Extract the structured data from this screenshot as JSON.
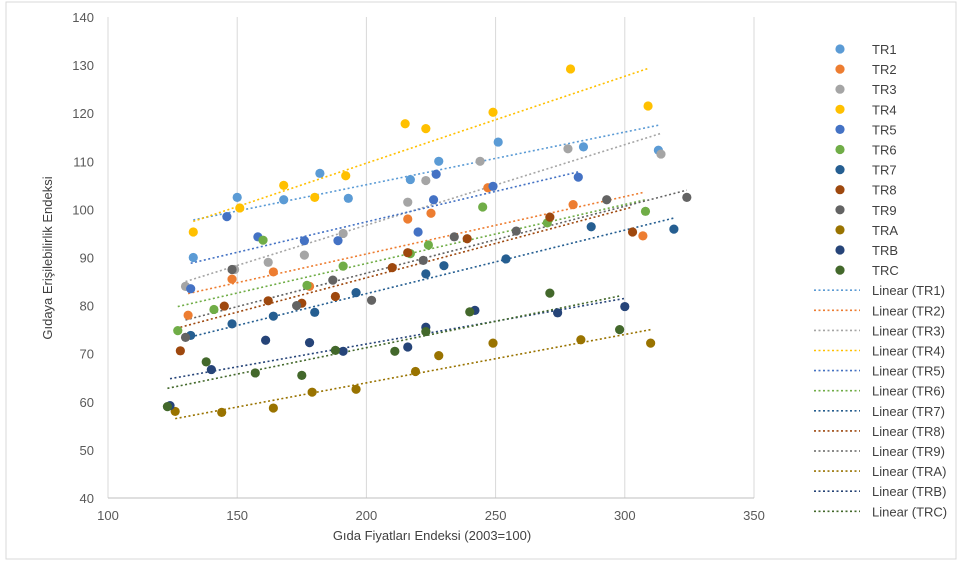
{
  "chart_data": {
    "type": "scatter",
    "xlabel": "Gıda Fiyatları Endeksi (2003=100)",
    "ylabel": "Gıdaya Erişilebilirlik Endeksi",
    "xlim": [
      100,
      350
    ],
    "ylim": [
      40,
      140
    ],
    "x_ticks": [
      100,
      150,
      200,
      250,
      300,
      350
    ],
    "y_ticks": [
      40,
      50,
      60,
      70,
      80,
      90,
      100,
      110,
      120,
      130,
      140
    ],
    "grid": "vertical",
    "legend_position": "right",
    "series": [
      {
        "name": "TR1",
        "color": "#5B9BD5",
        "points": [
          [
            133,
            90
          ],
          [
            150,
            102.5
          ],
          [
            168,
            102
          ],
          [
            182,
            107.5
          ],
          [
            193,
            102.3
          ],
          [
            217,
            106.2
          ],
          [
            228,
            110
          ],
          [
            251,
            114
          ],
          [
            284,
            113
          ],
          [
            313,
            112.3
          ]
        ]
      },
      {
        "name": "TR2",
        "color": "#ED7D31",
        "points": [
          [
            131,
            78
          ],
          [
            148,
            85.5
          ],
          [
            164,
            87
          ],
          [
            178,
            84
          ],
          [
            216,
            98
          ],
          [
            225,
            99.2
          ],
          [
            247,
            104.5
          ],
          [
            280,
            101
          ],
          [
            307,
            94.5
          ]
        ]
      },
      {
        "name": "TR3",
        "color": "#A5A5A5",
        "points": [
          [
            130,
            84
          ],
          [
            149,
            87.5
          ],
          [
            162,
            89
          ],
          [
            176,
            90.5
          ],
          [
            191,
            95
          ],
          [
            216,
            101.5
          ],
          [
            223,
            106
          ],
          [
            244,
            110
          ],
          [
            278,
            112.6
          ],
          [
            314,
            111.5
          ]
        ]
      },
      {
        "name": "TR4",
        "color": "#FFC000",
        "points": [
          [
            133,
            95.3
          ],
          [
            151,
            100.3
          ],
          [
            168,
            105
          ],
          [
            180,
            102.5
          ],
          [
            192,
            107
          ],
          [
            215,
            117.8
          ],
          [
            223,
            116.8
          ],
          [
            249,
            120.2
          ],
          [
            279,
            129.2
          ],
          [
            309,
            121.5
          ]
        ]
      },
      {
        "name": "TR5",
        "color": "#4472C4",
        "points": [
          [
            132,
            83.5
          ],
          [
            146,
            98.5
          ],
          [
            158,
            94.3
          ],
          [
            176,
            93.5
          ],
          [
            189,
            93.5
          ],
          [
            220,
            95.3
          ],
          [
            226,
            102
          ],
          [
            227,
            107.3
          ],
          [
            249,
            104.8
          ],
          [
            282,
            106.7
          ]
        ]
      },
      {
        "name": "TR6",
        "color": "#70AD47",
        "points": [
          [
            127,
            74.8
          ],
          [
            141,
            79.2
          ],
          [
            160,
            93.6
          ],
          [
            177,
            84.2
          ],
          [
            191,
            88.2
          ],
          [
            217,
            90.8
          ],
          [
            224,
            92.6
          ],
          [
            245,
            100.5
          ],
          [
            270,
            97.2
          ],
          [
            308,
            99.6
          ]
        ]
      },
      {
        "name": "TR7",
        "color": "#255E91",
        "points": [
          [
            132,
            73.8
          ],
          [
            148,
            76.2
          ],
          [
            164,
            77.8
          ],
          [
            180,
            78.6
          ],
          [
            196,
            82.7
          ],
          [
            223,
            86.6
          ],
          [
            230,
            88.3
          ],
          [
            254,
            89.7
          ],
          [
            287,
            96.4
          ],
          [
            319,
            95.9
          ]
        ]
      },
      {
        "name": "TR8",
        "color": "#9E480E",
        "points": [
          [
            128,
            70.6
          ],
          [
            145,
            79.9
          ],
          [
            162,
            81
          ],
          [
            175,
            80.5
          ],
          [
            188,
            81.9
          ],
          [
            210,
            87.9
          ],
          [
            216,
            91
          ],
          [
            239,
            93.9
          ],
          [
            271,
            98.4
          ],
          [
            303,
            95.3
          ]
        ]
      },
      {
        "name": "TR9",
        "color": "#636363",
        "points": [
          [
            130,
            73.4
          ],
          [
            148,
            87.5
          ],
          [
            173,
            80
          ],
          [
            187,
            85.3
          ],
          [
            202,
            81.1
          ],
          [
            222,
            89.4
          ],
          [
            234,
            94.3
          ],
          [
            258,
            95.5
          ],
          [
            293,
            102
          ],
          [
            324,
            102.5
          ]
        ]
      },
      {
        "name": "TRA",
        "color": "#997300",
        "points": [
          [
            126,
            58
          ],
          [
            144,
            57.8
          ],
          [
            164,
            58.7
          ],
          [
            179,
            62
          ],
          [
            196,
            62.6
          ],
          [
            219,
            66.3
          ],
          [
            228,
            69.6
          ],
          [
            249,
            72.2
          ],
          [
            283,
            72.9
          ],
          [
            310,
            72.2
          ]
        ]
      },
      {
        "name": "TRB",
        "color": "#264478",
        "points": [
          [
            124,
            59.2
          ],
          [
            140,
            66.7
          ],
          [
            161,
            72.8
          ],
          [
            178,
            72.3
          ],
          [
            191,
            70.5
          ],
          [
            216,
            71.4
          ],
          [
            223,
            75.5
          ],
          [
            242,
            79
          ],
          [
            274,
            78.5
          ],
          [
            300,
            79.8
          ]
        ]
      },
      {
        "name": "TRC",
        "color": "#43682B",
        "points": [
          [
            123,
            59
          ],
          [
            138,
            68.3
          ],
          [
            157,
            66
          ],
          [
            175,
            65.5
          ],
          [
            188,
            70.7
          ],
          [
            211,
            70.5
          ],
          [
            223,
            74.6
          ],
          [
            240,
            78.7
          ],
          [
            271,
            82.6
          ],
          [
            298,
            75
          ]
        ]
      }
    ],
    "trendlines": [
      {
        "name": "Linear (TR1)",
        "color": "#5B9BD5",
        "from": [
          133,
          97.8
        ],
        "to": [
          313,
          117.5
        ]
      },
      {
        "name": "Linear (TR2)",
        "color": "#ED7D31",
        "from": [
          131,
          82.5
        ],
        "to": [
          307,
          103.5
        ]
      },
      {
        "name": "Linear (TR3)",
        "color": "#A5A5A5",
        "from": [
          130,
          85
        ],
        "to": [
          314,
          115.8
        ]
      },
      {
        "name": "Linear (TR4)",
        "color": "#FFC000",
        "from": [
          133,
          97.5
        ],
        "to": [
          309,
          129.3
        ]
      },
      {
        "name": "Linear (TR5)",
        "color": "#4472C4",
        "from": [
          132,
          88.8
        ],
        "to": [
          282,
          107.8
        ]
      },
      {
        "name": "Linear (TR6)",
        "color": "#70AD47",
        "from": [
          127,
          79.8
        ],
        "to": [
          308,
          102
        ]
      },
      {
        "name": "Linear (TR7)",
        "color": "#255E91",
        "from": [
          132,
          73.5
        ],
        "to": [
          319,
          98.2
        ]
      },
      {
        "name": "Linear (TR8)",
        "color": "#9E480E",
        "from": [
          128,
          75.5
        ],
        "to": [
          303,
          100.5
        ]
      },
      {
        "name": "Linear (TR9)",
        "color": "#636363",
        "from": [
          130,
          77
        ],
        "to": [
          324,
          104
        ]
      },
      {
        "name": "Linear (TRA)",
        "color": "#997300",
        "from": [
          126,
          56.5
        ],
        "to": [
          310,
          75
        ]
      },
      {
        "name": "Linear (TRB)",
        "color": "#264478",
        "from": [
          124,
          64.8
        ],
        "to": [
          300,
          81.5
        ]
      },
      {
        "name": "Linear (TRC)",
        "color": "#43682B",
        "from": [
          123,
          62.8
        ],
        "to": [
          298,
          82
        ]
      }
    ]
  }
}
